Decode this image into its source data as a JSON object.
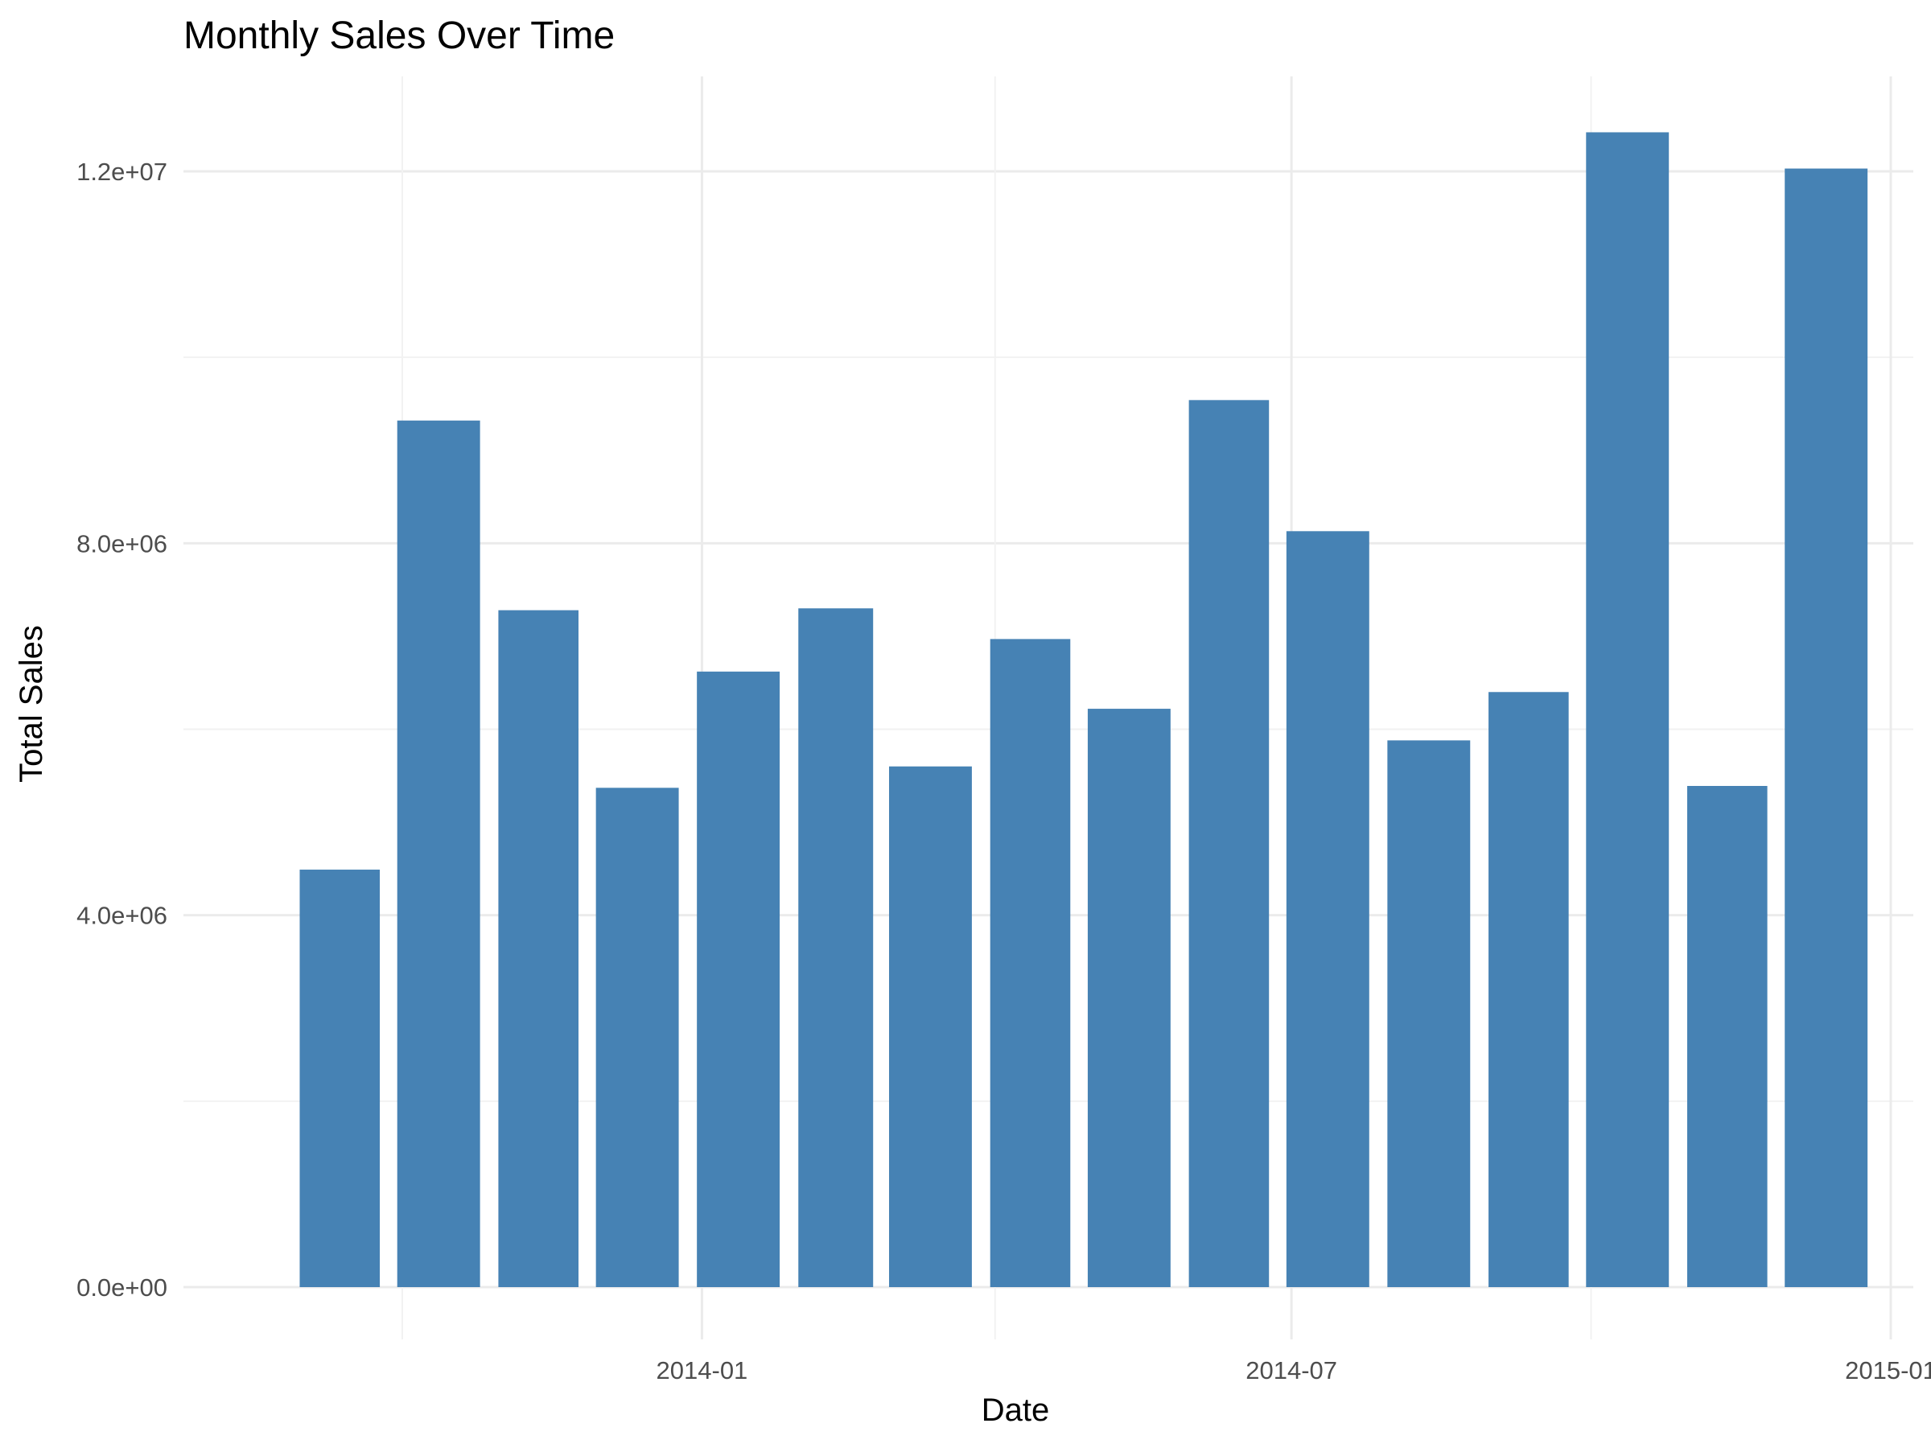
{
  "chart_data": {
    "type": "bar",
    "title": "Monthly Sales Over Time",
    "xlabel": "Date",
    "ylabel": "Total Sales",
    "bar_color": "#4682b4",
    "grid": true,
    "x_dates": [
      "2013-09",
      "2013-10",
      "2013-11",
      "2013-12",
      "2014-01",
      "2014-02",
      "2014-03",
      "2014-04",
      "2014-05",
      "2014-06",
      "2014-07",
      "2014-08",
      "2014-09",
      "2014-10",
      "2014-11",
      "2014-12"
    ],
    "values": [
      4490000,
      9320000,
      7280000,
      5370000,
      6620000,
      7300000,
      5600000,
      6970000,
      6220000,
      9540000,
      8130000,
      5880000,
      6400000,
      12420000,
      5390000,
      12030000
    ],
    "x_ticks": [
      {
        "date": "2014-01",
        "label": "2014-01"
      },
      {
        "date": "2014-07",
        "label": "2014-07"
      },
      {
        "date": "2015-01",
        "label": "2015-01"
      }
    ],
    "x_minor_ticks": [
      "2013-10",
      "2014-04",
      "2014-10"
    ],
    "xlim": [
      "2013-08-01",
      "2015-01-01"
    ],
    "y_ticks": [
      {
        "value": 0,
        "label": "0.0e+00"
      },
      {
        "value": 4000000,
        "label": "4.0e+06"
      },
      {
        "value": 8000000,
        "label": "8.0e+06"
      },
      {
        "value": 12000000,
        "label": "1.2e+07"
      }
    ],
    "y_minor_ticks": [
      2000000,
      6000000,
      10000000
    ],
    "ylim": [
      0,
      13000000
    ]
  }
}
